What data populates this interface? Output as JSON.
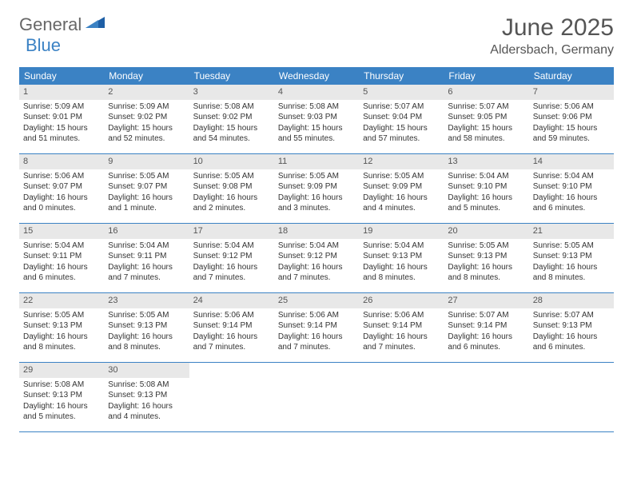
{
  "logo": {
    "text1": "General",
    "text2": "Blue"
  },
  "title": "June 2025",
  "location": "Aldersbach, Germany",
  "colors": {
    "header_bg": "#3b82c4",
    "day_num_bg": "#e8e8e8",
    "text": "#333333",
    "logo_gray": "#676767",
    "logo_blue": "#3b82c4"
  },
  "dow": [
    "Sunday",
    "Monday",
    "Tuesday",
    "Wednesday",
    "Thursday",
    "Friday",
    "Saturday"
  ],
  "weeks": [
    [
      {
        "n": "1",
        "sr": "Sunrise: 5:09 AM",
        "ss": "Sunset: 9:01 PM",
        "dl1": "Daylight: 15 hours",
        "dl2": "and 51 minutes."
      },
      {
        "n": "2",
        "sr": "Sunrise: 5:09 AM",
        "ss": "Sunset: 9:02 PM",
        "dl1": "Daylight: 15 hours",
        "dl2": "and 52 minutes."
      },
      {
        "n": "3",
        "sr": "Sunrise: 5:08 AM",
        "ss": "Sunset: 9:02 PM",
        "dl1": "Daylight: 15 hours",
        "dl2": "and 54 minutes."
      },
      {
        "n": "4",
        "sr": "Sunrise: 5:08 AM",
        "ss": "Sunset: 9:03 PM",
        "dl1": "Daylight: 15 hours",
        "dl2": "and 55 minutes."
      },
      {
        "n": "5",
        "sr": "Sunrise: 5:07 AM",
        "ss": "Sunset: 9:04 PM",
        "dl1": "Daylight: 15 hours",
        "dl2": "and 57 minutes."
      },
      {
        "n": "6",
        "sr": "Sunrise: 5:07 AM",
        "ss": "Sunset: 9:05 PM",
        "dl1": "Daylight: 15 hours",
        "dl2": "and 58 minutes."
      },
      {
        "n": "7",
        "sr": "Sunrise: 5:06 AM",
        "ss": "Sunset: 9:06 PM",
        "dl1": "Daylight: 15 hours",
        "dl2": "and 59 minutes."
      }
    ],
    [
      {
        "n": "8",
        "sr": "Sunrise: 5:06 AM",
        "ss": "Sunset: 9:07 PM",
        "dl1": "Daylight: 16 hours",
        "dl2": "and 0 minutes."
      },
      {
        "n": "9",
        "sr": "Sunrise: 5:05 AM",
        "ss": "Sunset: 9:07 PM",
        "dl1": "Daylight: 16 hours",
        "dl2": "and 1 minute."
      },
      {
        "n": "10",
        "sr": "Sunrise: 5:05 AM",
        "ss": "Sunset: 9:08 PM",
        "dl1": "Daylight: 16 hours",
        "dl2": "and 2 minutes."
      },
      {
        "n": "11",
        "sr": "Sunrise: 5:05 AM",
        "ss": "Sunset: 9:09 PM",
        "dl1": "Daylight: 16 hours",
        "dl2": "and 3 minutes."
      },
      {
        "n": "12",
        "sr": "Sunrise: 5:05 AM",
        "ss": "Sunset: 9:09 PM",
        "dl1": "Daylight: 16 hours",
        "dl2": "and 4 minutes."
      },
      {
        "n": "13",
        "sr": "Sunrise: 5:04 AM",
        "ss": "Sunset: 9:10 PM",
        "dl1": "Daylight: 16 hours",
        "dl2": "and 5 minutes."
      },
      {
        "n": "14",
        "sr": "Sunrise: 5:04 AM",
        "ss": "Sunset: 9:10 PM",
        "dl1": "Daylight: 16 hours",
        "dl2": "and 6 minutes."
      }
    ],
    [
      {
        "n": "15",
        "sr": "Sunrise: 5:04 AM",
        "ss": "Sunset: 9:11 PM",
        "dl1": "Daylight: 16 hours",
        "dl2": "and 6 minutes."
      },
      {
        "n": "16",
        "sr": "Sunrise: 5:04 AM",
        "ss": "Sunset: 9:11 PM",
        "dl1": "Daylight: 16 hours",
        "dl2": "and 7 minutes."
      },
      {
        "n": "17",
        "sr": "Sunrise: 5:04 AM",
        "ss": "Sunset: 9:12 PM",
        "dl1": "Daylight: 16 hours",
        "dl2": "and 7 minutes."
      },
      {
        "n": "18",
        "sr": "Sunrise: 5:04 AM",
        "ss": "Sunset: 9:12 PM",
        "dl1": "Daylight: 16 hours",
        "dl2": "and 7 minutes."
      },
      {
        "n": "19",
        "sr": "Sunrise: 5:04 AM",
        "ss": "Sunset: 9:13 PM",
        "dl1": "Daylight: 16 hours",
        "dl2": "and 8 minutes."
      },
      {
        "n": "20",
        "sr": "Sunrise: 5:05 AM",
        "ss": "Sunset: 9:13 PM",
        "dl1": "Daylight: 16 hours",
        "dl2": "and 8 minutes."
      },
      {
        "n": "21",
        "sr": "Sunrise: 5:05 AM",
        "ss": "Sunset: 9:13 PM",
        "dl1": "Daylight: 16 hours",
        "dl2": "and 8 minutes."
      }
    ],
    [
      {
        "n": "22",
        "sr": "Sunrise: 5:05 AM",
        "ss": "Sunset: 9:13 PM",
        "dl1": "Daylight: 16 hours",
        "dl2": "and 8 minutes."
      },
      {
        "n": "23",
        "sr": "Sunrise: 5:05 AM",
        "ss": "Sunset: 9:13 PM",
        "dl1": "Daylight: 16 hours",
        "dl2": "and 8 minutes."
      },
      {
        "n": "24",
        "sr": "Sunrise: 5:06 AM",
        "ss": "Sunset: 9:14 PM",
        "dl1": "Daylight: 16 hours",
        "dl2": "and 7 minutes."
      },
      {
        "n": "25",
        "sr": "Sunrise: 5:06 AM",
        "ss": "Sunset: 9:14 PM",
        "dl1": "Daylight: 16 hours",
        "dl2": "and 7 minutes."
      },
      {
        "n": "26",
        "sr": "Sunrise: 5:06 AM",
        "ss": "Sunset: 9:14 PM",
        "dl1": "Daylight: 16 hours",
        "dl2": "and 7 minutes."
      },
      {
        "n": "27",
        "sr": "Sunrise: 5:07 AM",
        "ss": "Sunset: 9:14 PM",
        "dl1": "Daylight: 16 hours",
        "dl2": "and 6 minutes."
      },
      {
        "n": "28",
        "sr": "Sunrise: 5:07 AM",
        "ss": "Sunset: 9:13 PM",
        "dl1": "Daylight: 16 hours",
        "dl2": "and 6 minutes."
      }
    ],
    [
      {
        "n": "29",
        "sr": "Sunrise: 5:08 AM",
        "ss": "Sunset: 9:13 PM",
        "dl1": "Daylight: 16 hours",
        "dl2": "and 5 minutes."
      },
      {
        "n": "30",
        "sr": "Sunrise: 5:08 AM",
        "ss": "Sunset: 9:13 PM",
        "dl1": "Daylight: 16 hours",
        "dl2": "and 4 minutes."
      },
      null,
      null,
      null,
      null,
      null
    ]
  ]
}
